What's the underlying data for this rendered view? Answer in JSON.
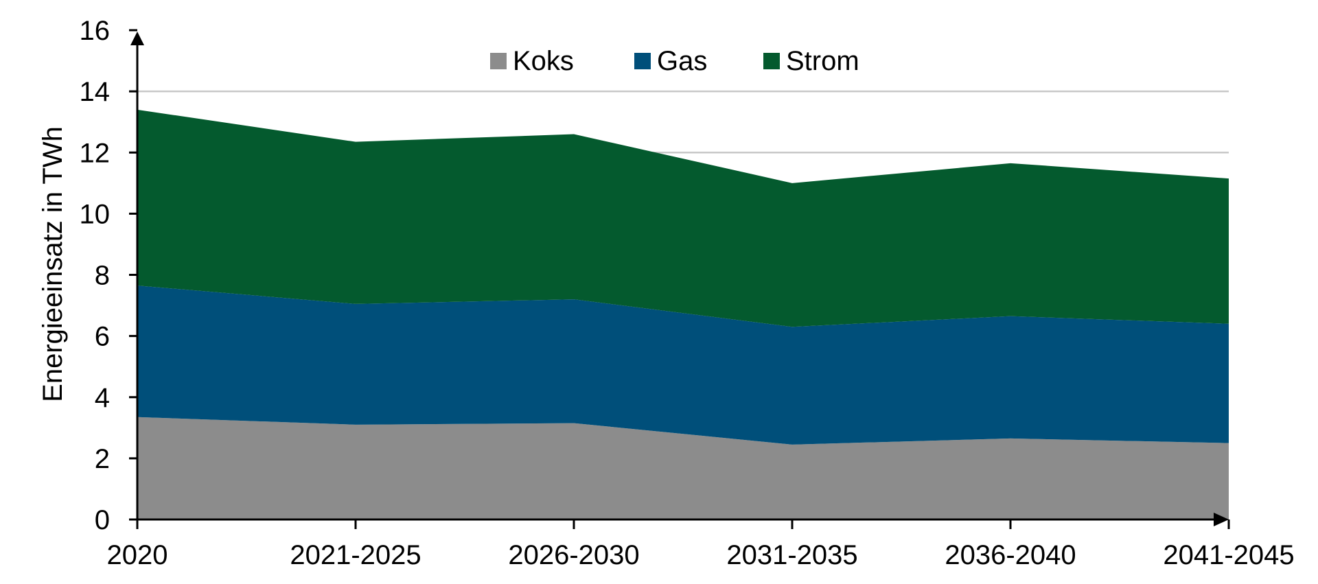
{
  "chart_data": {
    "type": "area",
    "stacked": true,
    "categories": [
      "2020",
      "2021-2025",
      "2026-2030",
      "2031-2035",
      "2036-2040",
      "2041-2045"
    ],
    "series": [
      {
        "name": "Koks",
        "color": "#8c8c8c",
        "values": [
          3.35,
          3.1,
          3.15,
          2.45,
          2.65,
          2.5
        ]
      },
      {
        "name": "Gas",
        "color": "#004f7a",
        "values": [
          4.3,
          3.95,
          4.05,
          3.85,
          4.0,
          3.9
        ]
      },
      {
        "name": "Strom",
        "color": "#045a2e",
        "values": [
          5.75,
          5.3,
          5.4,
          4.7,
          5.0,
          4.75
        ]
      }
    ],
    "ylabel": "Energieeinsatz in TWh",
    "xlabel": "",
    "ylim": [
      0,
      16
    ],
    "yticks": [
      0,
      2,
      4,
      6,
      8,
      10,
      12,
      14,
      16
    ],
    "grid": "horizontal",
    "legend": "top-center"
  }
}
